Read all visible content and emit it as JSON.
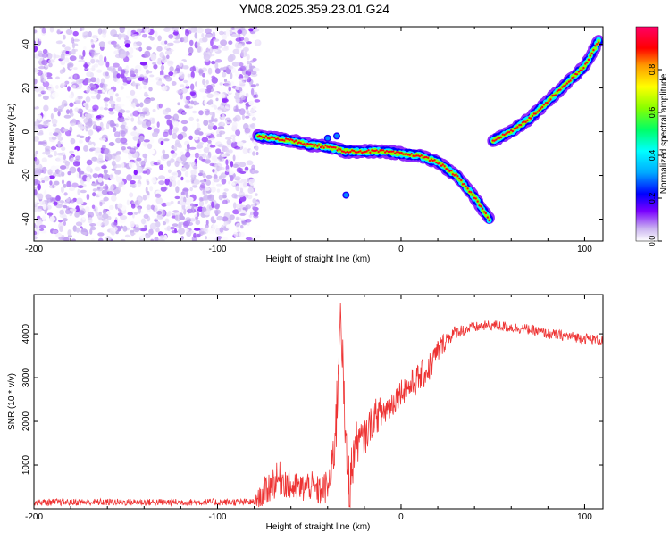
{
  "title": "YM08.2025.359.23.01.G24",
  "chart_data": [
    {
      "type": "heatmap",
      "xlabel": "Height of straight line (km)",
      "ylabel": "Frequency (Hz)",
      "xlim": [
        -200,
        110
      ],
      "ylim": [
        -50,
        48
      ],
      "xticks": [
        -200,
        -100,
        0,
        100
      ],
      "yticks": [
        -40,
        -20,
        0,
        20,
        40
      ],
      "colorbar": {
        "label": "Normalized spectral amplitude",
        "range": [
          0,
          1
        ],
        "ticks": [
          0.0,
          0.2,
          0.4,
          0.6,
          0.8
        ],
        "tick_labels": [
          "0.0",
          "0.2",
          "0.4",
          "0.6",
          "0.8"
        ]
      },
      "noise_region": {
        "x_from": -200,
        "x_to": -78,
        "max_amplitude": 0.25
      },
      "ridge": {
        "amplitude": 0.9,
        "segments": [
          {
            "points": [
              [
                -78,
                -2
              ],
              [
                -70,
                -3
              ],
              [
                -60,
                -4
              ],
              [
                -50,
                -6
              ],
              [
                -40,
                -7
              ],
              [
                -30,
                -9
              ],
              [
                -20,
                -9
              ],
              [
                -10,
                -9
              ],
              [
                0,
                -10
              ],
              [
                10,
                -11
              ],
              [
                20,
                -14
              ],
              [
                30,
                -20
              ],
              [
                40,
                -30
              ],
              [
                48,
                -40
              ]
            ]
          },
          {
            "points": [
              [
                50,
                -4
              ],
              [
                60,
                0
              ],
              [
                70,
                6
              ],
              [
                80,
                14
              ],
              [
                90,
                22
              ],
              [
                100,
                30
              ],
              [
                108,
                42
              ]
            ]
          }
        ],
        "isolated_blobs": [
          [
            -30,
            -29
          ],
          [
            -35,
            -2
          ],
          [
            -40,
            -3
          ]
        ]
      }
    },
    {
      "type": "line",
      "xlabel": "Height of straight line (km)",
      "ylabel": "SNR (10 * v/v)",
      "xlim": [
        -200,
        110
      ],
      "ylim": [
        0,
        4900
      ],
      "xticks": [
        -200,
        -100,
        0,
        100
      ],
      "yticks": [
        1000,
        2000,
        3000,
        4000
      ],
      "series": [
        {
          "color": "#ee3333",
          "x": [
            -200,
            -180,
            -160,
            -140,
            -120,
            -100,
            -90,
            -80,
            -75,
            -70,
            -65,
            -60,
            -55,
            -50,
            -45,
            -40,
            -38,
            -35,
            -33,
            -30,
            -28,
            -25,
            -20,
            -15,
            -10,
            -5,
            0,
            5,
            10,
            15,
            20,
            25,
            30,
            40,
            50,
            60,
            70,
            80,
            90,
            100,
            110
          ],
          "y": [
            150,
            150,
            150,
            150,
            150,
            150,
            150,
            150,
            350,
            600,
            700,
            500,
            450,
            550,
            400,
            500,
            700,
            2200,
            4800,
            1200,
            500,
            1500,
            1600,
            2100,
            2200,
            2400,
            2700,
            2800,
            3000,
            3200,
            3600,
            3900,
            4050,
            4150,
            4200,
            4150,
            4100,
            4000,
            3950,
            3900,
            3850
          ],
          "noise_amplitude": [
            80,
            80,
            80,
            80,
            80,
            80,
            80,
            80,
            350,
            400,
            400,
            350,
            350,
            350,
            350,
            400,
            500,
            900,
            500,
            700,
            700,
            500,
            400,
            400,
            400,
            350,
            300,
            350,
            350,
            350,
            300,
            200,
            150,
            120,
            120,
            120,
            120,
            120,
            120,
            120,
            120
          ]
        }
      ]
    }
  ]
}
